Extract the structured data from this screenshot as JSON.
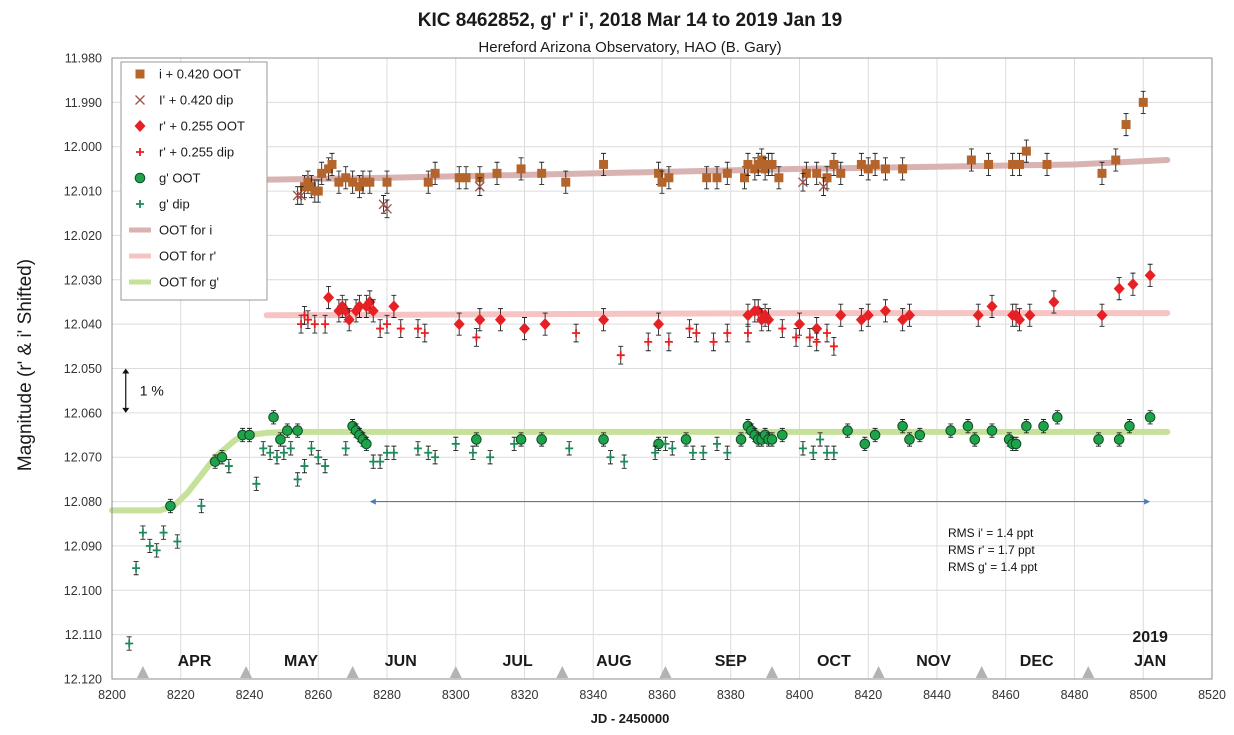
{
  "chart_data": {
    "type": "scatter",
    "title": "KIC 8462852, g' r' i', 2018 Mar 14 to 2019 Jan 19",
    "subtitle": "Hereford Arizona Observatory, HAO (B. Gary)",
    "xlabel": "JD - 2450000",
    "ylabel": "Magnitude  (r' & i' Shifted)",
    "xlim": [
      8200,
      8520
    ],
    "ylim": [
      11.98,
      12.12
    ],
    "y_inverted": true,
    "grid": true,
    "legend_position": "top-left",
    "x_ticks": [
      "8200",
      "8220",
      "8240",
      "8260",
      "8280",
      "8300",
      "8320",
      "8340",
      "8360",
      "8380",
      "8400",
      "8420",
      "8440",
      "8460",
      "8480",
      "8500",
      "8520"
    ],
    "y_ticks": [
      "11.980",
      "11.990",
      "12.000",
      "12.010",
      "12.020",
      "12.030",
      "12.040",
      "12.050",
      "12.060",
      "12.070",
      "12.080",
      "12.090",
      "12.100",
      "12.110",
      "12.120"
    ],
    "month_labels": [
      {
        "label": "APR",
        "x": 8224
      },
      {
        "label": "MAY",
        "x": 8255
      },
      {
        "label": "JUN",
        "x": 8284
      },
      {
        "label": "JUL",
        "x": 8318
      },
      {
        "label": "AUG",
        "x": 8346
      },
      {
        "label": "SEP",
        "x": 8380
      },
      {
        "label": "OCT",
        "x": 8410
      },
      {
        "label": "NOV",
        "x": 8439
      },
      {
        "label": "DEC",
        "x": 8469
      },
      {
        "label": "JAN",
        "x": 8502
      }
    ],
    "year_label": {
      "label": "2019",
      "x": 8502
    },
    "month_markers": [
      8209,
      8239,
      8270,
      8300,
      8331,
      8361,
      8392,
      8423,
      8453,
      8484
    ],
    "annotations": {
      "scale_label": "1 %",
      "rms": [
        "RMS i'  = 1.4 ppt",
        "RMS r' = 1.7 ppt",
        "RMS g' = 1.4 ppt"
      ],
      "scale_arrow": {
        "x": 8204,
        "y1": 12.05,
        "y2": 12.06
      },
      "range_arrow": {
        "x1": 8275,
        "x2": 8502,
        "y": 12.08
      }
    },
    "series": [
      {
        "name": "i + 0.420 OOT",
        "marker": "square",
        "color": "#b5652b",
        "err": 0.0025,
        "x": [
          8256,
          8257,
          8258,
          8259,
          8260,
          8261,
          8263,
          8264,
          8266,
          8268,
          8270,
          8272,
          8273,
          8275,
          8280,
          8292,
          8294,
          8301,
          8303,
          8307,
          8312,
          8319,
          8325,
          8332,
          8343,
          8359,
          8360,
          8362,
          8373,
          8376,
          8379,
          8384,
          8385,
          8387,
          8388,
          8389,
          8390,
          8391,
          8392,
          8394,
          8402,
          8405,
          8408,
          8410,
          8412,
          8418,
          8420,
          8422,
          8425,
          8430,
          8450,
          8455,
          8462,
          8464,
          8466,
          8472,
          8488,
          8492,
          8495,
          8500
        ],
        "y": [
          12.009,
          12.008,
          12.009,
          12.01,
          12.01,
          12.006,
          12.005,
          12.004,
          12.008,
          12.007,
          12.008,
          12.009,
          12.008,
          12.008,
          12.008,
          12.008,
          12.006,
          12.007,
          12.007,
          12.007,
          12.006,
          12.005,
          12.006,
          12.008,
          12.004,
          12.006,
          12.008,
          12.007,
          12.007,
          12.007,
          12.006,
          12.007,
          12.004,
          12.005,
          12.004,
          12.003,
          12.005,
          12.004,
          12.004,
          12.007,
          12.006,
          12.006,
          12.007,
          12.004,
          12.006,
          12.004,
          12.005,
          12.004,
          12.005,
          12.005,
          12.003,
          12.004,
          12.004,
          12.004,
          12.001,
          12.004,
          12.006,
          12.003,
          11.995,
          11.99
        ]
      },
      {
        "name": "I' + 0.420 dip",
        "marker": "x",
        "color": "#a0524a",
        "err": 0.002,
        "x": [
          8254,
          8255,
          8279,
          8280,
          8307,
          8401,
          8407
        ],
        "y": [
          12.011,
          12.011,
          12.013,
          12.014,
          12.009,
          12.008,
          12.009
        ]
      },
      {
        "name": "r' + 0.255 OOT",
        "marker": "diamond",
        "color": "#e52125",
        "err": 0.0025,
        "x": [
          8263,
          8266,
          8267,
          8268,
          8269,
          8271,
          8272,
          8274,
          8275,
          8276,
          8282,
          8301,
          8307,
          8313,
          8320,
          8326,
          8343,
          8359,
          8385,
          8387,
          8388,
          8389,
          8390,
          8391,
          8400,
          8405,
          8412,
          8418,
          8420,
          8425,
          8430,
          8432,
          8452,
          8456,
          8462,
          8463,
          8464,
          8467,
          8474,
          8488,
          8493,
          8497,
          8502
        ],
        "y": [
          12.034,
          12.037,
          12.036,
          12.037,
          12.039,
          12.037,
          12.036,
          12.036,
          12.035,
          12.037,
          12.036,
          12.04,
          12.039,
          12.039,
          12.041,
          12.04,
          12.039,
          12.04,
          12.038,
          12.037,
          12.037,
          12.039,
          12.038,
          12.039,
          12.04,
          12.041,
          12.038,
          12.039,
          12.038,
          12.037,
          12.039,
          12.038,
          12.038,
          12.036,
          12.038,
          12.038,
          12.039,
          12.038,
          12.035,
          12.038,
          12.032,
          12.031,
          12.029
        ]
      },
      {
        "name": "r' + 0.255 dip",
        "marker": "plus",
        "color": "#e52125",
        "err": 0.002,
        "x": [
          8255,
          8256,
          8257,
          8259,
          8262,
          8278,
          8280,
          8284,
          8289,
          8291,
          8306,
          8335,
          8348,
          8356,
          8362,
          8368,
          8370,
          8375,
          8379,
          8385,
          8395,
          8399,
          8403,
          8405,
          8408,
          8410
        ],
        "y": [
          12.04,
          12.038,
          12.039,
          12.04,
          12.04,
          12.041,
          12.04,
          12.041,
          12.041,
          12.042,
          12.043,
          12.042,
          12.047,
          12.044,
          12.044,
          12.041,
          12.042,
          12.044,
          12.042,
          12.042,
          12.041,
          12.043,
          12.043,
          12.044,
          12.042,
          12.045
        ]
      },
      {
        "name": "g' OOT",
        "marker": "circle",
        "color": "#1fa34a",
        "err": 0.0015,
        "x": [
          8217,
          8230,
          8232,
          8238,
          8240,
          8247,
          8249,
          8251,
          8254,
          8270,
          8271,
          8272,
          8273,
          8274,
          8306,
          8319,
          8325,
          8343,
          8359,
          8367,
          8383,
          8385,
          8386,
          8387,
          8388,
          8389,
          8390,
          8391,
          8392,
          8395,
          8414,
          8419,
          8422,
          8430,
          8432,
          8435,
          8444,
          8449,
          8451,
          8456,
          8461,
          8462,
          8463,
          8466,
          8471,
          8475,
          8487,
          8493,
          8496,
          8502
        ],
        "y": [
          12.081,
          12.071,
          12.07,
          12.065,
          12.065,
          12.061,
          12.066,
          12.064,
          12.064,
          12.063,
          12.064,
          12.065,
          12.066,
          12.067,
          12.066,
          12.066,
          12.066,
          12.066,
          12.067,
          12.066,
          12.066,
          12.063,
          12.064,
          12.065,
          12.066,
          12.066,
          12.065,
          12.066,
          12.066,
          12.065,
          12.064,
          12.067,
          12.065,
          12.063,
          12.066,
          12.065,
          12.064,
          12.063,
          12.066,
          12.064,
          12.066,
          12.067,
          12.067,
          12.063,
          12.063,
          12.061,
          12.066,
          12.066,
          12.063,
          12.061
        ]
      },
      {
        "name": "g' dip",
        "marker": "plus",
        "color": "#1e8a5a",
        "err": 0.0015,
        "x": [
          8205,
          8207,
          8209,
          8211,
          8213,
          8215,
          8219,
          8226,
          8234,
          8242,
          8244,
          8246,
          8248,
          8250,
          8252,
          8254,
          8256,
          8258,
          8260,
          8262,
          8268,
          8276,
          8278,
          8280,
          8282,
          8289,
          8292,
          8294,
          8300,
          8305,
          8310,
          8317,
          8333,
          8345,
          8349,
          8358,
          8361,
          8363,
          8369,
          8372,
          8376,
          8379,
          8401,
          8404,
          8406,
          8408,
          8410
        ],
        "y": [
          12.112,
          12.095,
          12.087,
          12.09,
          12.091,
          12.087,
          12.089,
          12.081,
          12.072,
          12.076,
          12.068,
          12.069,
          12.07,
          12.069,
          12.068,
          12.075,
          12.072,
          12.068,
          12.07,
          12.072,
          12.068,
          12.071,
          12.071,
          12.069,
          12.069,
          12.068,
          12.069,
          12.07,
          12.067,
          12.069,
          12.07,
          12.067,
          12.068,
          12.07,
          12.071,
          12.069,
          12.067,
          12.068,
          12.069,
          12.069,
          12.067,
          12.069,
          12.068,
          12.069,
          12.066,
          12.069,
          12.069
        ]
      },
      {
        "name": "OOT for i",
        "type": "line",
        "color": "#d9b2b2",
        "x": [
          8240,
          8280,
          8400,
          8480,
          8507
        ],
        "y": [
          12.0075,
          12.007,
          12.005,
          12.004,
          12.003
        ]
      },
      {
        "name": "OOT for r'",
        "type": "line",
        "color": "#f7c4c4",
        "x": [
          8245,
          8400,
          8507
        ],
        "y": [
          12.038,
          12.0375,
          12.0375
        ]
      },
      {
        "name": "OOT for g'",
        "type": "line",
        "color": "#c5e19a",
        "x": [
          8200,
          8214,
          8218,
          8222,
          8226,
          8230,
          8236,
          8240,
          8245,
          8252,
          8507
        ],
        "y": [
          12.082,
          12.082,
          12.081,
          12.078,
          12.074,
          12.07,
          12.066,
          12.065,
          12.0645,
          12.0643,
          12.0643
        ]
      }
    ]
  }
}
